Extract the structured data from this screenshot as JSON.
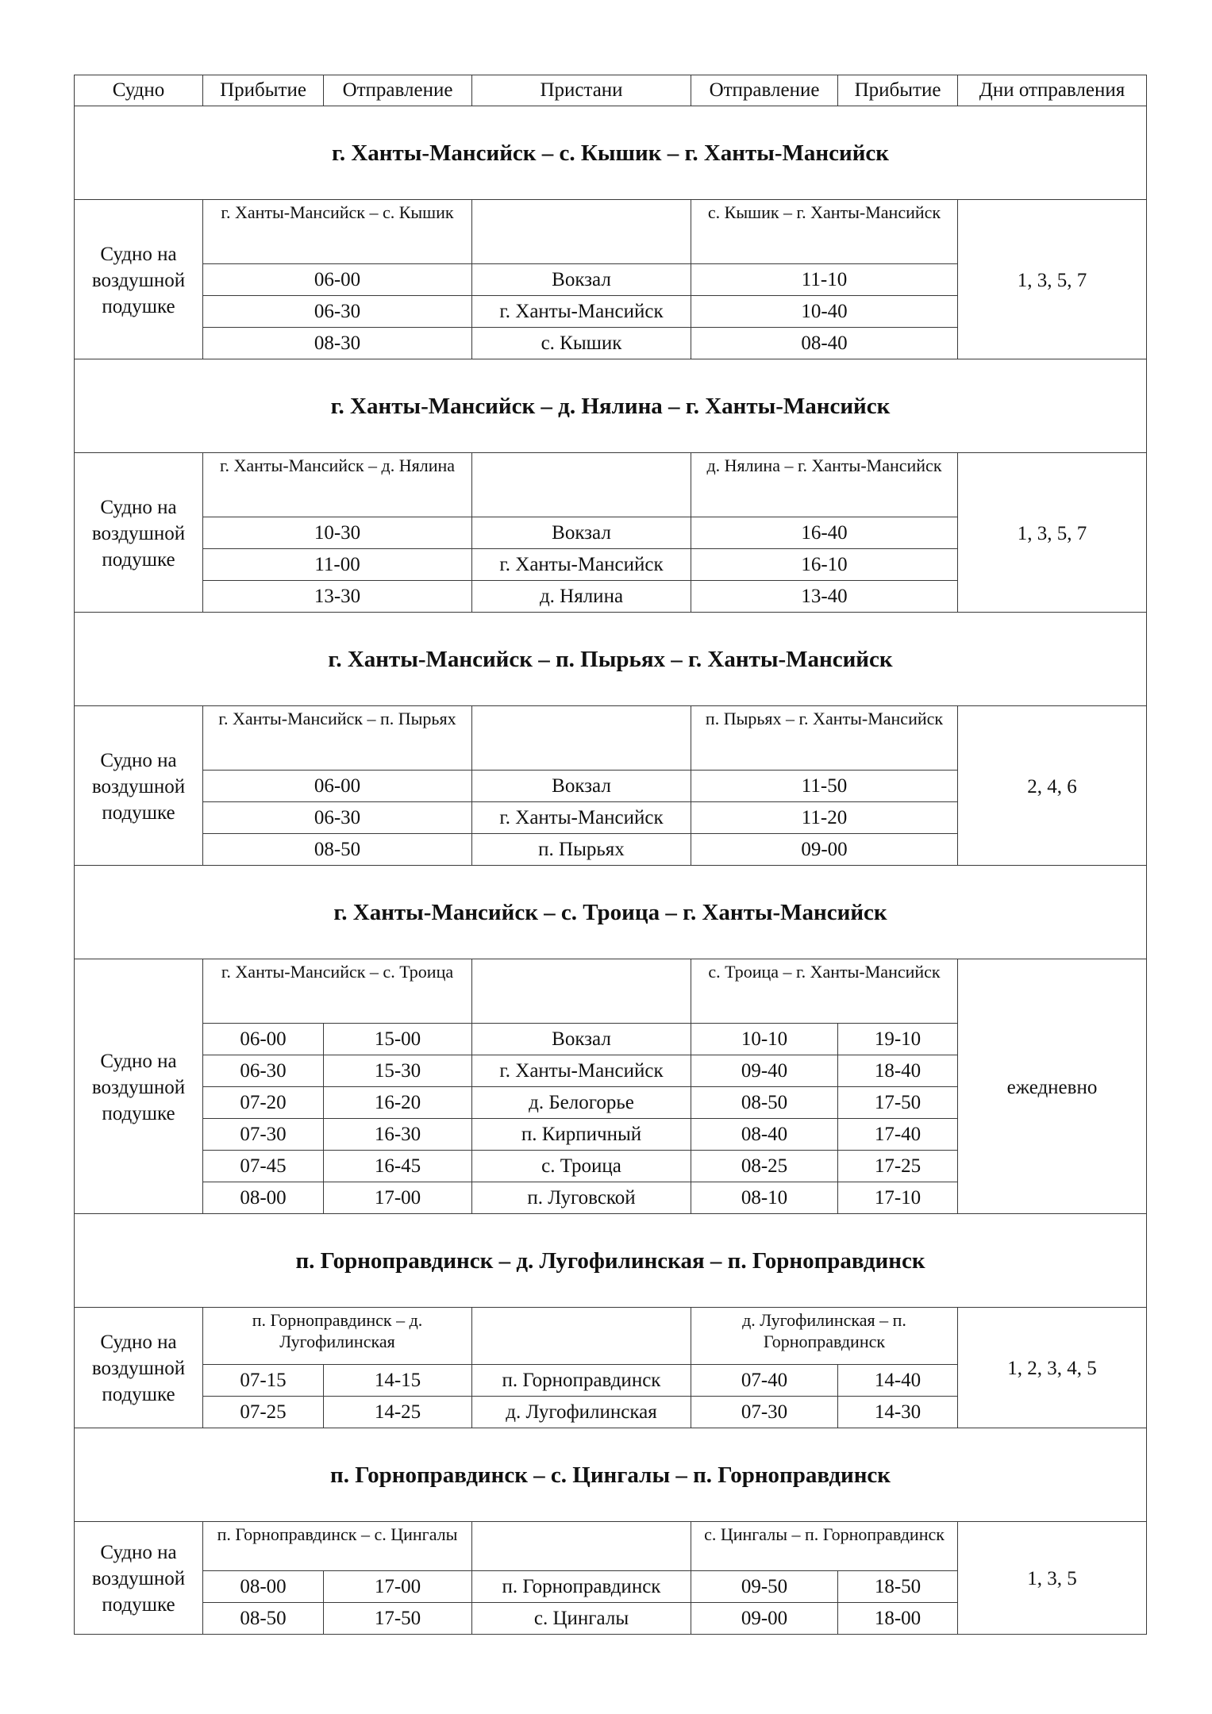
{
  "header": [
    "Судно",
    "Прибытие",
    "Отправление",
    "Пристани",
    "Отправление",
    "Прибытие",
    "Дни отправления"
  ],
  "sections": [
    {
      "title": "г. Ханты-Мансийск – с. Кышик – г. Ханты-Мансийск",
      "vessel": "Судно на воздушной подушке",
      "left_direction": "г. Ханты-Мансийск – с. Кышик",
      "right_direction": "с. Кышик – г. Ханты-Мансийск",
      "days": "1, 3, 5, 7",
      "rows": [
        {
          "out": [
            "06-00"
          ],
          "pier": "Вокзал",
          "back": [
            "11-10"
          ]
        },
        {
          "out": [
            "06-30"
          ],
          "pier": "г. Ханты-Мансийск",
          "back": [
            "10-40"
          ]
        },
        {
          "out": [
            "08-30"
          ],
          "pier": "с. Кышик",
          "back": [
            "08-40"
          ]
        }
      ]
    },
    {
      "title": "г. Ханты-Мансийск – д. Нялина – г. Ханты-Мансийск",
      "vessel": "Судно на воздушной подушке",
      "left_direction": "г. Ханты-Мансийск – д. Нялина",
      "right_direction": "д. Нялина – г. Ханты-Мансийск",
      "days": "1, 3, 5, 7",
      "rows": [
        {
          "out": [
            "10-30"
          ],
          "pier": "Вокзал",
          "back": [
            "16-40"
          ]
        },
        {
          "out": [
            "11-00"
          ],
          "pier": "г. Ханты-Мансийск",
          "back": [
            "16-10"
          ]
        },
        {
          "out": [
            "13-30"
          ],
          "pier": "д. Нялина",
          "back": [
            "13-40"
          ]
        }
      ]
    },
    {
      "title": "г. Ханты-Мансийск – п. Пырьях – г. Ханты-Мансийск",
      "vessel": "Судно на воздушной подушке",
      "left_direction": "г. Ханты-Мансийск – п. Пырьях",
      "right_direction": "п. Пырьях – г. Ханты-Мансийск",
      "days": "2, 4, 6",
      "rows": [
        {
          "out": [
            "06-00"
          ],
          "pier": "Вокзал",
          "back": [
            "11-50"
          ]
        },
        {
          "out": [
            "06-30"
          ],
          "pier": "г. Ханты-Мансийск",
          "back": [
            "11-20"
          ]
        },
        {
          "out": [
            "08-50"
          ],
          "pier": "п. Пырьях",
          "back": [
            "09-00"
          ]
        }
      ]
    },
    {
      "title": "г. Ханты-Мансийск – с. Троица – г. Ханты-Мансийск",
      "vessel": "Судно на воздушной подушке",
      "left_direction": "г. Ханты-Мансийск – с. Троица",
      "right_direction": "с. Троица – г. Ханты-Мансийск",
      "days": "ежедневно",
      "rows": [
        {
          "out": [
            "06-00",
            "15-00"
          ],
          "pier": "Вокзал",
          "back": [
            "10-10",
            "19-10"
          ]
        },
        {
          "out": [
            "06-30",
            "15-30"
          ],
          "pier": "г. Ханты-Мансийск",
          "back": [
            "09-40",
            "18-40"
          ]
        },
        {
          "out": [
            "07-20",
            "16-20"
          ],
          "pier": "д. Белогорье",
          "back": [
            "08-50",
            "17-50"
          ]
        },
        {
          "out": [
            "07-30",
            "16-30"
          ],
          "pier": "п. Кирпичный",
          "back": [
            "08-40",
            "17-40"
          ]
        },
        {
          "out": [
            "07-45",
            "16-45"
          ],
          "pier": "с. Троица",
          "back": [
            "08-25",
            "17-25"
          ]
        },
        {
          "out": [
            "08-00",
            "17-00"
          ],
          "pier": "п. Луговской",
          "back": [
            "08-10",
            "17-10"
          ]
        }
      ]
    },
    {
      "title": "п. Горноправдинск – д. Лугофилинская – п. Горноправдинск",
      "vessel": "Судно на воздушной подушке",
      "left_direction": "п. Горноправдинск – д. Лугофилинская",
      "right_direction": "д. Лугофилинская – п. Горноправдинск",
      "days": "1, 2, 3, 4, 5",
      "rows": [
        {
          "out": [
            "07-15",
            "14-15"
          ],
          "pier": "п. Горноправдинск",
          "back": [
            "07-40",
            "14-40"
          ]
        },
        {
          "out": [
            "07-25",
            "14-25"
          ],
          "pier": "д. Лугофилинская",
          "back": [
            "07-30",
            "14-30"
          ]
        }
      ]
    },
    {
      "title": "п. Горноправдинск – с. Цингалы – п. Горноправдинск",
      "vessel": "Судно на воздушной подушке",
      "left_direction": "п. Горноправдинск – с. Цингалы",
      "right_direction": "с. Цингалы – п. Горноправдинск",
      "days": "1, 3, 5",
      "rows": [
        {
          "out": [
            "08-00",
            "17-00"
          ],
          "pier": "п. Горноправдинск",
          "back": [
            "09-50",
            "18-50"
          ]
        },
        {
          "out": [
            "08-50",
            "17-50"
          ],
          "pier": "с. Цингалы",
          "back": [
            "09-00",
            "18-00"
          ]
        }
      ]
    }
  ]
}
